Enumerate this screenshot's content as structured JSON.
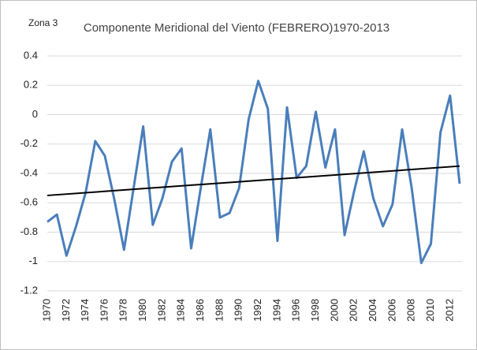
{
  "chart_data": {
    "type": "line",
    "title": "Componente Meridional del Viento (FEBRERO)1970-2013",
    "annotation": "Zona 3",
    "x": [
      1970,
      1971,
      1972,
      1973,
      1974,
      1975,
      1976,
      1977,
      1978,
      1979,
      1980,
      1981,
      1982,
      1983,
      1984,
      1985,
      1986,
      1987,
      1988,
      1989,
      1990,
      1991,
      1992,
      1993,
      1994,
      1995,
      1996,
      1997,
      1998,
      1999,
      2000,
      2001,
      2002,
      2003,
      2004,
      2005,
      2006,
      2007,
      2008,
      2009,
      2010,
      2011,
      2012,
      2013
    ],
    "series": [
      {
        "color": "#4a7ebb",
        "values": [
          -0.73,
          -0.68,
          -0.96,
          -0.76,
          -0.53,
          -0.18,
          -0.28,
          -0.58,
          -0.92,
          -0.5,
          -0.08,
          -0.75,
          -0.57,
          -0.32,
          -0.23,
          -0.91,
          -0.5,
          -0.1,
          -0.7,
          -0.67,
          -0.5,
          -0.03,
          0.23,
          0.04,
          -0.86,
          0.05,
          -0.43,
          -0.35,
          0.02,
          -0.36,
          -0.1,
          -0.82,
          -0.52,
          -0.25,
          -0.57,
          -0.76,
          -0.61,
          -0.1,
          -0.5,
          -1.01,
          -0.88,
          -0.12,
          0.13,
          -0.47
        ]
      }
    ],
    "trend": {
      "color": "#000000",
      "x": [
        1970,
        2013
      ],
      "values": [
        -0.55,
        -0.35
      ]
    },
    "xlim": [
      1970,
      2013
    ],
    "xticks": [
      1970,
      1972,
      1974,
      1976,
      1978,
      1980,
      1982,
      1984,
      1986,
      1988,
      1990,
      1992,
      1994,
      1996,
      1998,
      2000,
      2002,
      2004,
      2006,
      2008,
      2010,
      2012
    ],
    "ylim": [
      -1.2,
      0.4
    ],
    "yticks": [
      0.4,
      0.2,
      0,
      -0.2,
      -0.4,
      -0.6,
      -0.8,
      -1,
      -1.2
    ],
    "grid": true
  }
}
